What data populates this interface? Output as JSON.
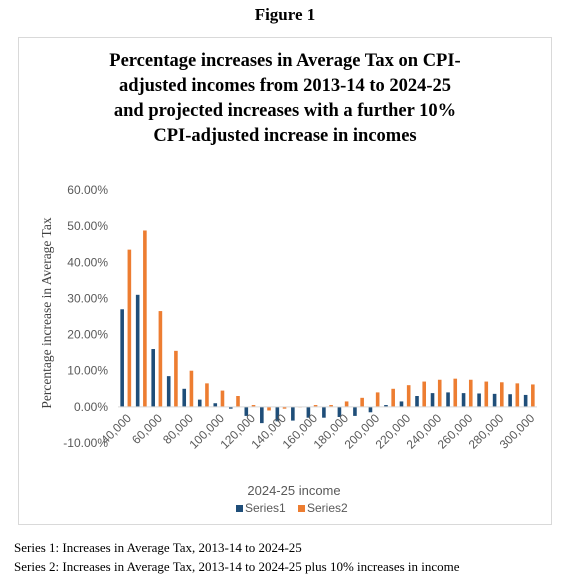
{
  "figure_label": "Figure 1",
  "notes": [
    "Series 1: Increases in Average Tax, 2013-14 to 2024-25",
    "Series 2: Increases in Average Tax, 2013-14 to 2024-25 plus 10% increases in income"
  ],
  "colors": {
    "series1": "#1f4e79",
    "series2": "#ed7d31",
    "axis": "#d9d9d9",
    "text": "#595959"
  },
  "chart_data": {
    "type": "bar",
    "title_lines": [
      "Percentage increases in Average Tax on CPI-",
      "adjusted incomes from 2013-14 to 2024-25",
      "and projected increases with a further 10%",
      "CPI-adjusted increase in incomes"
    ],
    "xlabel": "2024-25 income",
    "ylabel": "Percentage increase in Average Tax",
    "ylim": [
      -10,
      60
    ],
    "yticks": [
      "-10.00%",
      "0.00%",
      "10.00%",
      "20.00%",
      "30.00%",
      "40.00%",
      "50.00%",
      "60.00%"
    ],
    "ytick_values": [
      -10,
      0,
      10,
      20,
      30,
      40,
      50,
      60
    ],
    "categories": [
      "40,000",
      "50,000",
      "60,000",
      "70,000",
      "80,000",
      "90,000",
      "100,000",
      "110,000",
      "120,000",
      "130,000",
      "140,000",
      "150,000",
      "160,000",
      "170,000",
      "180,000",
      "190,000",
      "200,000",
      "210,000",
      "220,000",
      "230,000",
      "240,000",
      "250,000",
      "260,000",
      "270,000",
      "280,000",
      "290,000",
      "300,000"
    ],
    "xtick_labels": [
      "40,000",
      "60,000",
      "80,000",
      "100,000",
      "120,000",
      "140,000",
      "160,000",
      "180,000",
      "200,000",
      "220,000",
      "240,000",
      "260,000",
      "280,000",
      "300,000"
    ],
    "series": [
      {
        "name": "Series1",
        "values": [
          27.0,
          31.0,
          16.0,
          8.5,
          5.0,
          2.0,
          1.0,
          -0.5,
          -2.5,
          -4.5,
          -4.0,
          -3.8,
          -3.0,
          -3.0,
          -2.8,
          -2.5,
          -1.5,
          0.5,
          1.5,
          3.0,
          3.8,
          4.0,
          3.8,
          3.7,
          3.6,
          3.5,
          3.3
        ]
      },
      {
        "name": "Series2",
        "values": [
          43.5,
          48.8,
          26.5,
          15.5,
          10.0,
          6.5,
          4.5,
          3.0,
          0.5,
          -1.0,
          -0.5,
          0.0,
          0.5,
          0.5,
          1.5,
          2.5,
          4.0,
          5.0,
          6.0,
          7.0,
          7.5,
          7.8,
          7.5,
          7.0,
          6.8,
          6.5,
          6.2
        ]
      }
    ],
    "grid": false,
    "legend_position": "bottom"
  }
}
